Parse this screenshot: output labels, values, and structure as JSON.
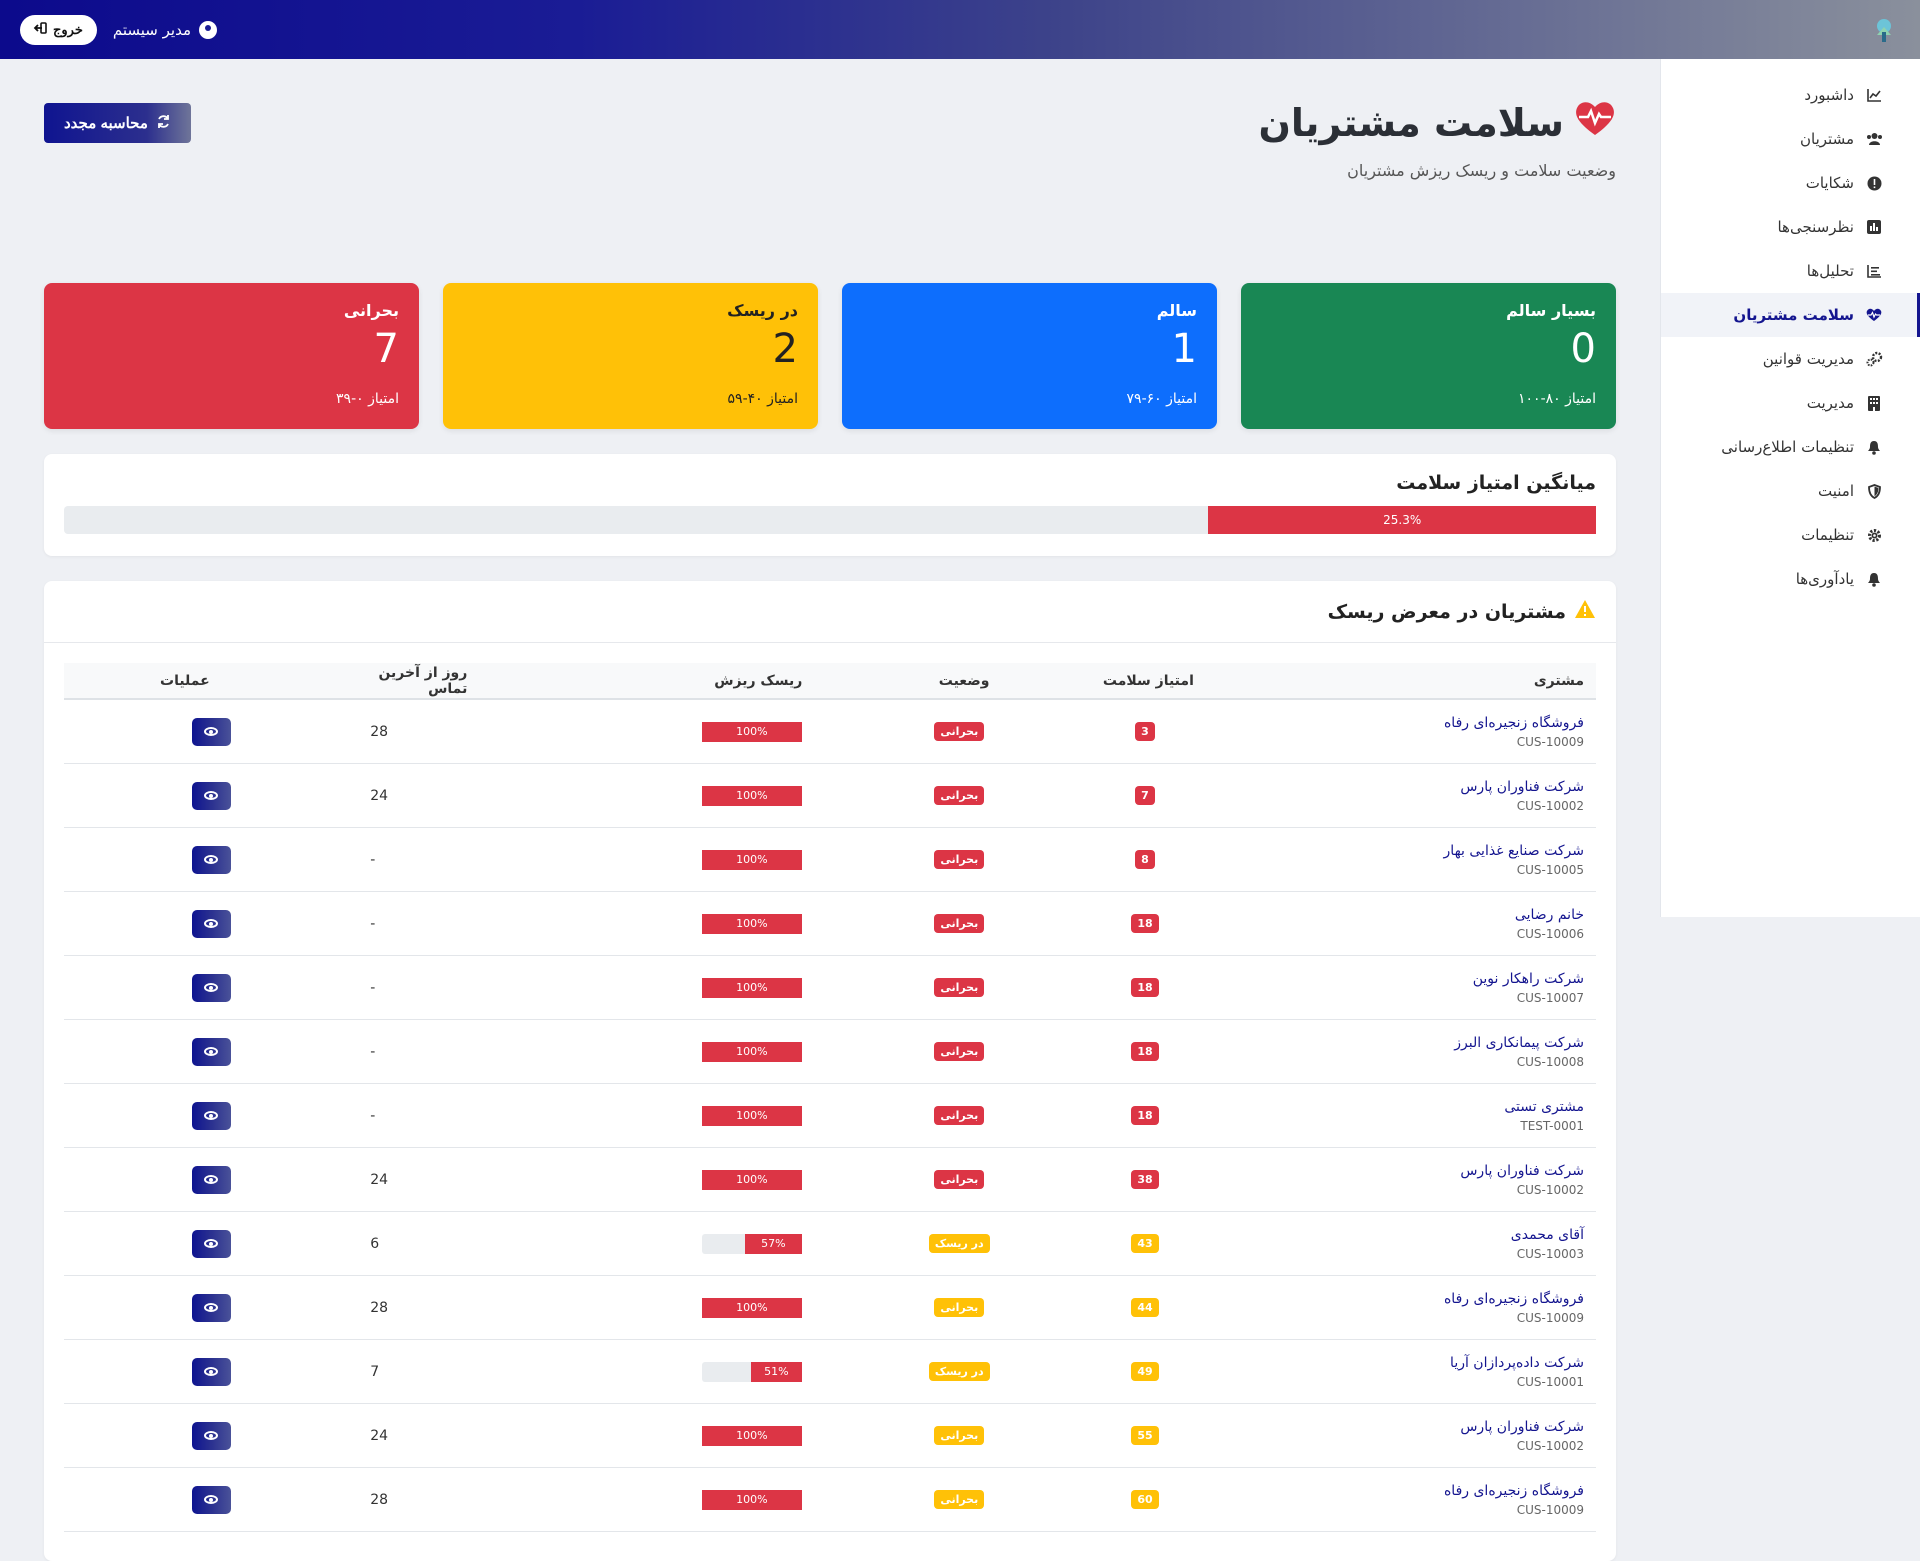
{
  "topbar": {
    "user_label": "مدیر سیستم",
    "logout_label": "خروج"
  },
  "sidebar": {
    "items": [
      {
        "label": "داشبورد",
        "icon": "chart-line-icon"
      },
      {
        "label": "مشتریان",
        "icon": "users-icon"
      },
      {
        "label": "شکایات",
        "icon": "exclamation-circle-icon"
      },
      {
        "label": "نظرسنجی‌ها",
        "icon": "poll-icon"
      },
      {
        "label": "تحلیل‌ها",
        "icon": "analytics-icon"
      },
      {
        "label": "سلامت مشتریان",
        "icon": "heartbeat-icon",
        "active": true
      },
      {
        "label": "مدیریت قوانین",
        "icon": "cogs-icon"
      },
      {
        "label": "مدیریت",
        "icon": "building-icon"
      },
      {
        "label": "تنظیمات اطلاع‌رسانی",
        "icon": "bell-icon"
      },
      {
        "label": "امنیت",
        "icon": "shield-icon"
      },
      {
        "label": "تنظیمات",
        "icon": "gear-icon"
      },
      {
        "label": "یادآوری‌ها",
        "icon": "bell-icon"
      }
    ]
  },
  "page": {
    "title": "سلامت مشتریان",
    "subtitle": "وضعیت سلامت و ریسک ریزش مشتریان",
    "recalc_label": "محاسبه مجدد"
  },
  "cards": [
    {
      "label": "بسیار سالم",
      "value": "0",
      "range": "امتیاز ۸۰-۱۰۰",
      "color": "#198754"
    },
    {
      "label": "سالم",
      "value": "1",
      "range": "امتیاز ۶۰-۷۹",
      "color": "#0d6efd"
    },
    {
      "label": "در ریسک",
      "value": "2",
      "range": "امتیاز ۴۰-۵۹",
      "color": "#ffc107"
    },
    {
      "label": "بحرانی",
      "value": "7",
      "range": "امتیاز ۰-۳۹",
      "color": "#dc3545"
    }
  ],
  "average": {
    "title": "میانگین امتیاز سلامت",
    "value_label": "25.3%",
    "value": 25.3
  },
  "risk": {
    "title": "مشتریان در معرض ریسک",
    "columns": [
      "مشتری",
      "امتیاز سلامت",
      "وضعیت",
      "ریسک ریزش",
      "روز از آخرین تماس",
      "عملیات"
    ],
    "rows": [
      {
        "name": "فروشگاه زنجیره‌ای رفاه",
        "id": "CUS-10009",
        "score": "3",
        "score_color": "red",
        "status": "بحرانی",
        "status_color": "red",
        "churn": "100%",
        "churn_value": 100,
        "days": "28"
      },
      {
        "name": "شرکت فناوران پارس",
        "id": "CUS-10002",
        "score": "7",
        "score_color": "red",
        "status": "بحرانی",
        "status_color": "red",
        "churn": "100%",
        "churn_value": 100,
        "days": "24"
      },
      {
        "name": "شرکت صنایع غذایی بهار",
        "id": "CUS-10005",
        "score": "8",
        "score_color": "red",
        "status": "بحرانی",
        "status_color": "red",
        "churn": "100%",
        "churn_value": 100,
        "days": "-"
      },
      {
        "name": "خانم رضایی",
        "id": "CUS-10006",
        "score": "18",
        "score_color": "red",
        "status": "بحرانی",
        "status_color": "red",
        "churn": "100%",
        "churn_value": 100,
        "days": "-"
      },
      {
        "name": "شرکت راهکار نوین",
        "id": "CUS-10007",
        "score": "18",
        "score_color": "red",
        "status": "بحرانی",
        "status_color": "red",
        "churn": "100%",
        "churn_value": 100,
        "days": "-"
      },
      {
        "name": "شرکت پیمانکاری البرز",
        "id": "CUS-10008",
        "score": "18",
        "score_color": "red",
        "status": "بحرانی",
        "status_color": "red",
        "churn": "100%",
        "churn_value": 100,
        "days": "-"
      },
      {
        "name": "مشتری تستی",
        "id": "TEST-0001",
        "score": "18",
        "score_color": "red",
        "status": "بحرانی",
        "status_color": "red",
        "churn": "100%",
        "churn_value": 100,
        "days": "-"
      },
      {
        "name": "شرکت فناوران پارس",
        "id": "CUS-10002",
        "score": "38",
        "score_color": "red",
        "status": "بحرانی",
        "status_color": "red",
        "churn": "100%",
        "churn_value": 100,
        "days": "24"
      },
      {
        "name": "آقای محمدی",
        "id": "CUS-10003",
        "score": "43",
        "score_color": "yellow",
        "status": "در ریسک",
        "status_color": "yellow",
        "churn": "57%",
        "churn_value": 57,
        "days": "6"
      },
      {
        "name": "فروشگاه زنجیره‌ای رفاه",
        "id": "CUS-10009",
        "score": "44",
        "score_color": "yellow",
        "status": "بحرانی",
        "status_color": "yellow",
        "churn": "100%",
        "churn_value": 100,
        "days": "28"
      },
      {
        "name": "شرکت داده‌پردازان آریا",
        "id": "CUS-10001",
        "score": "49",
        "score_color": "yellow",
        "status": "در ریسک",
        "status_color": "yellow",
        "churn": "51%",
        "churn_value": 51,
        "days": "7"
      },
      {
        "name": "شرکت فناوران پارس",
        "id": "CUS-10002",
        "score": "55",
        "score_color": "yellow",
        "status": "بحرانی",
        "status_color": "yellow",
        "churn": "100%",
        "churn_value": 100,
        "days": "24"
      },
      {
        "name": "فروشگاه زنجیره‌ای رفاه",
        "id": "CUS-10009",
        "score": "60",
        "score_color": "yellow",
        "status": "بحرانی",
        "status_color": "yellow",
        "churn": "100%",
        "churn_value": 100,
        "days": "28"
      }
    ]
  },
  "colors": {
    "brand": "#14158f",
    "danger": "#dc3545",
    "warning": "#ffc107"
  }
}
